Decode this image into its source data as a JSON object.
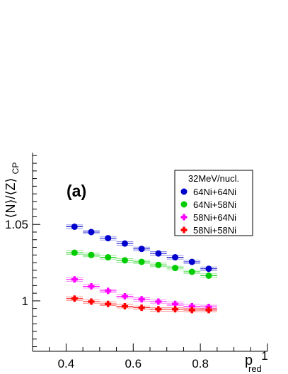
{
  "chart_data": {
    "type": "scatter",
    "panel_label": "(a)",
    "xlabel_main": "p",
    "xlabel_sub": "red",
    "ylabel_main": "⟨N⟩/⟨Z⟩",
    "ylabel_sub": "CP",
    "xlim": [
      0.3,
      1.0
    ],
    "ylim": [
      0.967,
      1.097
    ],
    "x_ticks": [
      0.4,
      0.6,
      0.8,
      1.0
    ],
    "x_tick_labels": [
      "0.4",
      "0.6",
      "0.8",
      "1"
    ],
    "y_ticks": [
      1.0,
      1.05
    ],
    "y_tick_labels": [
      "1",
      "1.05"
    ],
    "legend_title": "32MeV/nucl.",
    "legend_position": "top-right",
    "x": [
      0.425,
      0.475,
      0.525,
      0.575,
      0.625,
      0.675,
      0.725,
      0.775,
      0.825
    ],
    "series": [
      {
        "name": "64Ni+64Ni",
        "color": "#0000cc",
        "marker": "circle",
        "values": [
          1.0485,
          1.045,
          1.041,
          1.0375,
          1.034,
          1.031,
          1.0285,
          1.0255,
          1.021
        ]
      },
      {
        "name": "64Ni+58Ni",
        "color": "#00cc00",
        "marker": "circle",
        "values": [
          1.0315,
          1.03,
          1.0285,
          1.0265,
          1.0255,
          1.0235,
          1.0215,
          1.019,
          1.0165
        ]
      },
      {
        "name": "58Ni+64Ni",
        "color": "#ff00ff",
        "marker": "cross",
        "values": [
          1.014,
          1.0095,
          1.0065,
          1.003,
          1.001,
          0.9995,
          0.998,
          0.9965,
          0.996
        ]
      },
      {
        "name": "58Ni+58Ni",
        "color": "#ff0000",
        "marker": "cross",
        "values": [
          1.0015,
          0.9995,
          0.998,
          0.9965,
          0.9955,
          0.9945,
          0.9945,
          0.994,
          0.994
        ]
      }
    ]
  }
}
